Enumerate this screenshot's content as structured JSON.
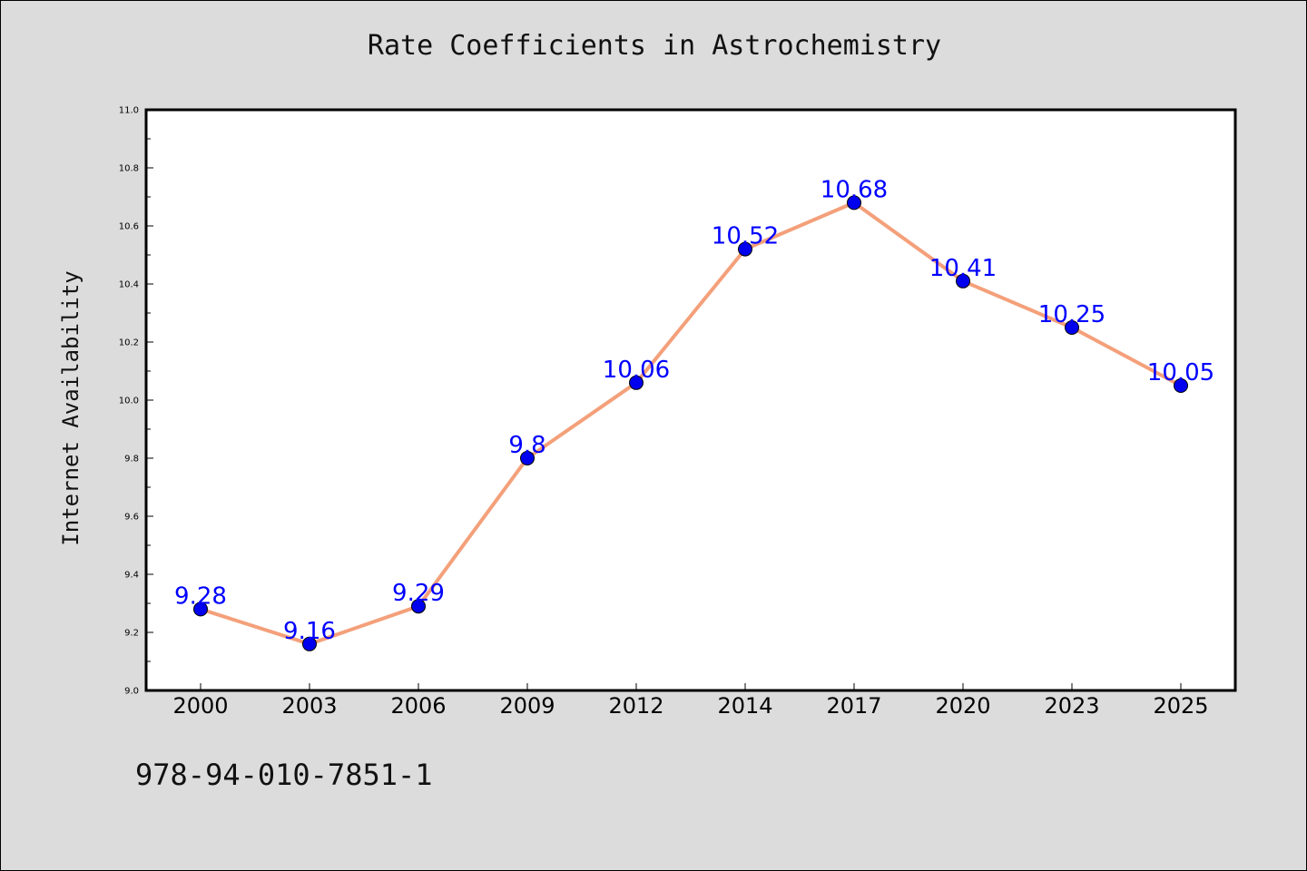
{
  "chart_data": {
    "type": "line",
    "title": "Rate Coefficients in Astrochemistry",
    "xlabel": "",
    "ylabel": "Internet Availability",
    "categories": [
      "2000",
      "2003",
      "2006",
      "2009",
      "2012",
      "2014",
      "2017",
      "2020",
      "2023",
      "2025"
    ],
    "series": [
      {
        "values": [
          9.28,
          9.16,
          9.29,
          9.8,
          10.06,
          10.52,
          10.68,
          10.41,
          10.25,
          10.05
        ],
        "labels": [
          "9.28",
          "9.16",
          "9.29",
          "9.8",
          "10.06",
          "10.52",
          "10.68",
          "10.41",
          "10.25",
          "10.05"
        ],
        "line_color": "#f4a07a",
        "marker_color": "#0000ee",
        "label_color": "#0000ff"
      }
    ],
    "ylim": [
      9.0,
      11.0
    ],
    "yticks": [
      "9.0",
      "9.2",
      "9.4",
      "9.6",
      "9.8",
      "10.0",
      "10.2",
      "10.4",
      "10.6",
      "10.8",
      "11.0"
    ],
    "grid": false,
    "legend": "none"
  },
  "footer_text": "978-94-010-7851-1"
}
